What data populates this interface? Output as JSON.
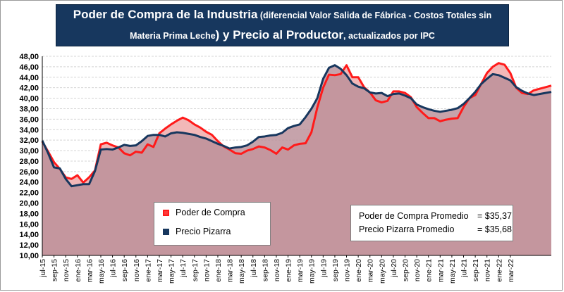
{
  "title": {
    "line1_bold": "Poder de Compra de la Industria",
    "line1_rest": " (diferencial Valor Salida de Fábrica - Costos Totales sin",
    "line2_start": "Materia Prima Leche",
    "line2_bold": ") y Precio al Productor",
    "line2_end": ", actualizados por IPC"
  },
  "legend": {
    "poder_label": "Poder de Compra",
    "precio_label": "Precio Pizarra"
  },
  "averages": {
    "poder_label": "Poder de Compra Promedio",
    "poder_value": "= $35,37",
    "precio_label": "Precio Pizarra Promedio",
    "precio_value": "= $35,68"
  },
  "colors": {
    "poder_line": "#ff1a1a",
    "precio_line": "#17375e",
    "poder_area": "#f2b8b8",
    "precio_area": "#b98f98",
    "title_bg": "#17375e"
  },
  "chart_data": {
    "type": "area",
    "ylim": [
      10,
      48
    ],
    "yticks": [
      "10,00",
      "12,00",
      "14,00",
      "16,00",
      "18,00",
      "20,00",
      "22,00",
      "24,00",
      "26,00",
      "28,00",
      "30,00",
      "32,00",
      "34,00",
      "36,00",
      "38,00",
      "40,00",
      "42,00",
      "44,00",
      "46,00",
      "48,00"
    ],
    "grid": true,
    "legend_position": "bottom-left",
    "xticks": [
      "jul-15",
      "sep-15",
      "nov-15",
      "ene-16",
      "mar-16",
      "may-16",
      "jul-16",
      "sep-16",
      "nov-16",
      "ene-17",
      "mar-17",
      "may-17",
      "jul-17",
      "sep-17",
      "nov-17",
      "ene-18",
      "mar-18",
      "may-18",
      "jul-18",
      "sep-18",
      "nov-18",
      "ene-19",
      "mar-19",
      "may-19",
      "jul-19",
      "sep-19",
      "nov-19",
      "ene-20",
      "mar-20",
      "may-20",
      "jul-20",
      "sep-20",
      "nov-20",
      "ene-21",
      "mar-21",
      "may-21",
      "jul-21",
      "sep-21",
      "nov-21",
      "ene-22",
      "mar-22"
    ],
    "series": [
      {
        "name": "Poder de Compra",
        "values": [
          31.7,
          29.8,
          27.8,
          26.5,
          24.9,
          24.6,
          25.3,
          23.9,
          24.9,
          26.2,
          31.2,
          31.5,
          31.0,
          30.6,
          29.5,
          29.1,
          29.8,
          29.6,
          31.2,
          30.7,
          33.3,
          34.2,
          35.0,
          35.7,
          36.3,
          35.8,
          35.0,
          34.4,
          33.6,
          33.0,
          31.8,
          30.8,
          30.2,
          29.5,
          29.4,
          30.0,
          30.3,
          30.8,
          30.6,
          30.1,
          29.4,
          30.6,
          30.2,
          31.0,
          31.3,
          31.4,
          33.5,
          38.2,
          42.0,
          44.5,
          44.4,
          44.6,
          46.3,
          44.0,
          44.0,
          42.1,
          41.1,
          39.6,
          39.2,
          39.5,
          41.3,
          41.3,
          41.0,
          40.2,
          38.3,
          37.2,
          36.2,
          36.2,
          35.6,
          35.9,
          36.1,
          36.2,
          38.3,
          40.0,
          40.6,
          42.7,
          44.8,
          46.0,
          46.7,
          46.4,
          44.8,
          42.0,
          41.0,
          40.8,
          41.5,
          41.8,
          42.1,
          42.4
        ]
      },
      {
        "name": "Precio Pizarra",
        "values": [
          31.9,
          29.5,
          26.8,
          26.6,
          24.6,
          23.2,
          23.4,
          23.6,
          23.6,
          26.1,
          30.2,
          30.3,
          30.2,
          30.6,
          31.1,
          30.9,
          31.0,
          31.8,
          32.8,
          33.0,
          33.0,
          32.7,
          33.3,
          33.5,
          33.4,
          33.2,
          33.0,
          32.6,
          32.3,
          31.8,
          31.3,
          30.9,
          30.4,
          30.6,
          30.7,
          31.0,
          31.7,
          32.6,
          32.7,
          32.9,
          33.0,
          33.4,
          34.3,
          34.7,
          35.0,
          36.4,
          38.0,
          40.0,
          43.7,
          45.8,
          46.3,
          45.6,
          44.4,
          42.8,
          42.2,
          41.9,
          41.1,
          40.9,
          41.0,
          40.4,
          40.8,
          40.9,
          40.5,
          40.0,
          38.8,
          38.3,
          37.9,
          37.6,
          37.4,
          37.6,
          37.8,
          38.1,
          38.9,
          40.0,
          41.2,
          42.7,
          43.7,
          44.6,
          44.4,
          43.9,
          43.4,
          42.1,
          41.4,
          40.9,
          40.6,
          40.8,
          41.0,
          41.2
        ]
      }
    ]
  }
}
